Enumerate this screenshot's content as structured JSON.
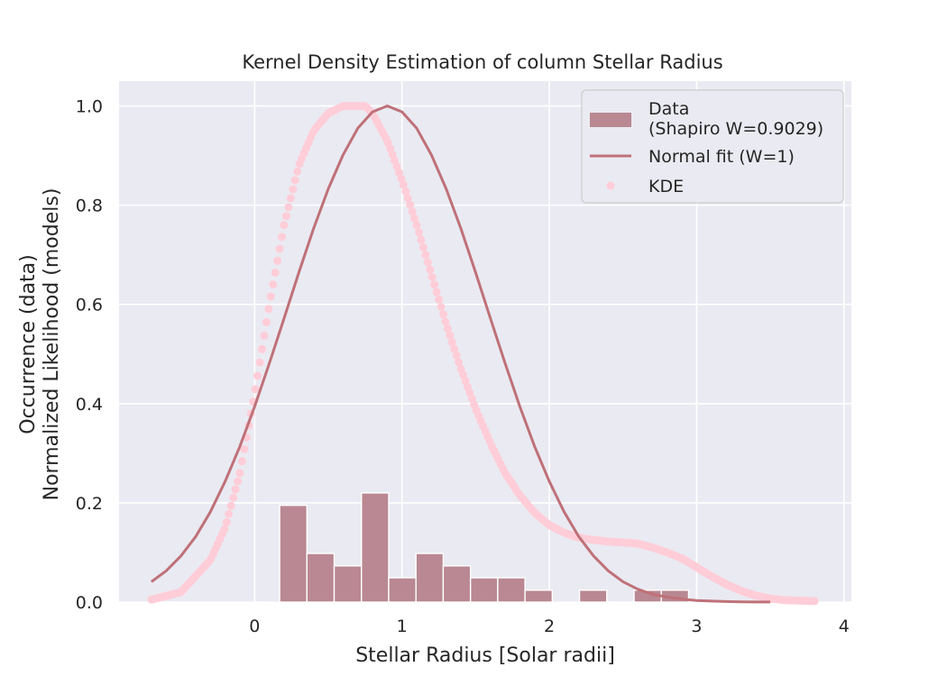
{
  "chart_data": {
    "type": "histogram",
    "title": "Kernel Density Estimation of column Stellar Radius",
    "xlabel": "Stellar Radius [Solar radii]",
    "ylabel_line1": "Occurrence (data)",
    "ylabel_line2": "Normalized Likelihood (models)",
    "xlim": [
      -0.92,
      4.05
    ],
    "ylim": [
      0,
      1.05
    ],
    "xticks": [
      0,
      1,
      2,
      3,
      4
    ],
    "yticks": [
      0.0,
      0.2,
      0.4,
      0.6,
      0.8,
      1.0
    ],
    "xtick_labels": [
      "0",
      "1",
      "2",
      "3",
      "4"
    ],
    "ytick_labels": [
      "0.0",
      "0.2",
      "0.4",
      "0.6",
      "0.8",
      "1.0"
    ],
    "grid": true,
    "legend_position": "top-right",
    "legend": {
      "data_line1": "Data",
      "data_line2": "(Shapiro W=0.9029)",
      "normal": "Normal fit (W=1)",
      "kde": "KDE"
    },
    "colors": {
      "background": "#eaeaf2",
      "grid": "#ffffff",
      "hist": "#b98892",
      "normal": "#bf7178",
      "kde": "#ffcdd8"
    },
    "histogram": {
      "bin_edges": [
        0.17,
        0.355,
        0.54,
        0.725,
        0.91,
        1.095,
        1.28,
        1.465,
        1.65,
        1.835,
        2.02,
        2.205,
        2.39,
        2.575,
        2.76,
        2.945
      ],
      "heights": [
        0.195,
        0.098,
        0.073,
        0.22,
        0.049,
        0.098,
        0.073,
        0.049,
        0.049,
        0.024,
        0.0,
        0.024,
        0.0,
        0.024,
        0.024
      ]
    },
    "series": [
      {
        "name": "Normal fit (W=1)",
        "x": [
          -0.7,
          -0.6,
          -0.5,
          -0.4,
          -0.3,
          -0.2,
          -0.1,
          0.0,
          0.1,
          0.2,
          0.3,
          0.4,
          0.5,
          0.6,
          0.7,
          0.8,
          0.9,
          1.0,
          1.1,
          1.2,
          1.3,
          1.4,
          1.5,
          1.6,
          1.7,
          1.8,
          1.9,
          2.0,
          2.1,
          2.2,
          2.3,
          2.4,
          2.5,
          2.6,
          2.7,
          2.8,
          2.9,
          3.0,
          3.1,
          3.2,
          3.3,
          3.4,
          3.5
        ],
        "y": [
          0.041,
          0.063,
          0.093,
          0.132,
          0.182,
          0.243,
          0.314,
          0.394,
          0.481,
          0.572,
          0.664,
          0.753,
          0.833,
          0.901,
          0.955,
          0.988,
          1.0,
          0.988,
          0.955,
          0.901,
          0.833,
          0.753,
          0.664,
          0.572,
          0.481,
          0.394,
          0.314,
          0.243,
          0.182,
          0.132,
          0.093,
          0.063,
          0.041,
          0.026,
          0.016,
          0.01,
          0.006,
          0.003,
          0.002,
          0.001,
          0.0005,
          0.0002,
          0.0001
        ]
      },
      {
        "name": "KDE",
        "x": [
          -0.7,
          -0.5,
          -0.3,
          -0.2,
          -0.1,
          0.0,
          0.1,
          0.2,
          0.3,
          0.4,
          0.5,
          0.6,
          0.7,
          0.75,
          0.8,
          0.9,
          1.0,
          1.1,
          1.2,
          1.3,
          1.4,
          1.5,
          1.6,
          1.7,
          1.8,
          1.9,
          2.0,
          2.1,
          2.2,
          2.3,
          2.4,
          2.5,
          2.6,
          2.7,
          2.8,
          2.9,
          3.0,
          3.1,
          3.2,
          3.3,
          3.4,
          3.5,
          3.6,
          3.7,
          3.8
        ],
        "y": [
          0.005,
          0.02,
          0.085,
          0.15,
          0.26,
          0.42,
          0.6,
          0.76,
          0.88,
          0.95,
          0.985,
          1.0,
          1.0,
          1.0,
          0.985,
          0.93,
          0.85,
          0.76,
          0.66,
          0.56,
          0.47,
          0.39,
          0.32,
          0.26,
          0.215,
          0.18,
          0.155,
          0.14,
          0.13,
          0.125,
          0.122,
          0.12,
          0.118,
          0.11,
          0.1,
          0.088,
          0.07,
          0.052,
          0.036,
          0.023,
          0.013,
          0.007,
          0.004,
          0.003,
          0.002
        ]
      }
    ]
  }
}
